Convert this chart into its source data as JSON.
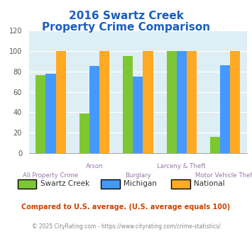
{
  "title_line1": "2016 Swartz Creek",
  "title_line2": "Property Crime Comparison",
  "categories": [
    "All Property Crime",
    "Arson",
    "Burglary",
    "Larceny & Theft",
    "Motor Vehicle Theft"
  ],
  "series": {
    "Swartz Creek": [
      76,
      39,
      95,
      100,
      16
    ],
    "Michigan": [
      78,
      85,
      75,
      100,
      86
    ],
    "National": [
      100,
      100,
      100,
      100,
      100
    ]
  },
  "colors": {
    "Swartz Creek": "#7dc832",
    "Michigan": "#4499ff",
    "National": "#ffaa22"
  },
  "ylim": [
    0,
    120
  ],
  "yticks": [
    0,
    20,
    40,
    60,
    80,
    100,
    120
  ],
  "background_color": "#deeef5",
  "title_color": "#1a5fbf",
  "xlabel_color": "#9977aa",
  "footnote": "Compared to U.S. average. (U.S. average equals 100)",
  "copyright": "© 2025 CityRating.com - https://www.cityrating.com/crime-statistics/",
  "footnote_color": "#cc4400",
  "copyright_color": "#888888",
  "legend_labels": [
    "Swartz Creek",
    "Michigan",
    "National"
  ]
}
